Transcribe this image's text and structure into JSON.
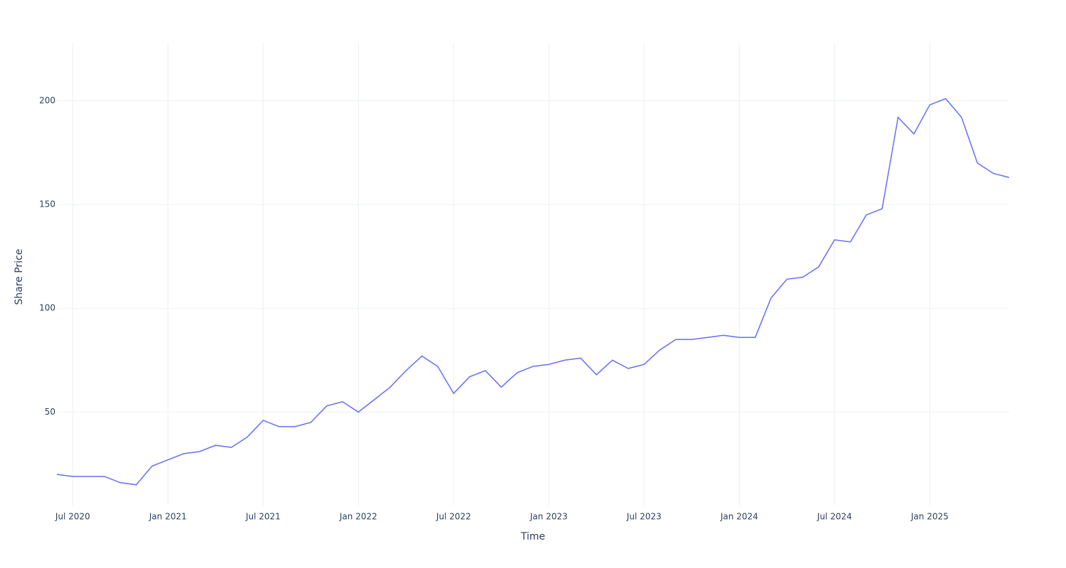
{
  "chart_data": {
    "type": "line",
    "x_label": "Time",
    "y_label": "Share Price",
    "x": [
      "2020-06",
      "2020-07",
      "2020-08",
      "2020-09",
      "2020-10",
      "2020-11",
      "2020-12",
      "2021-01",
      "2021-02",
      "2021-03",
      "2021-04",
      "2021-05",
      "2021-06",
      "2021-07",
      "2021-08",
      "2021-09",
      "2021-10",
      "2021-11",
      "2021-12",
      "2022-01",
      "2022-02",
      "2022-03",
      "2022-04",
      "2022-05",
      "2022-06",
      "2022-07",
      "2022-08",
      "2022-09",
      "2022-10",
      "2022-11",
      "2022-12",
      "2023-01",
      "2023-02",
      "2023-03",
      "2023-04",
      "2023-05",
      "2023-06",
      "2023-07",
      "2023-08",
      "2023-09",
      "2023-10",
      "2023-11",
      "2023-12",
      "2024-01",
      "2024-02",
      "2024-03",
      "2024-04",
      "2024-05",
      "2024-06",
      "2024-07",
      "2024-08",
      "2024-09",
      "2024-10",
      "2024-11",
      "2024-12",
      "2025-01",
      "2025-02",
      "2025-03",
      "2025-04",
      "2025-05",
      "2025-06"
    ],
    "series": [
      {
        "color": "#636efa",
        "values": [
          20,
          19,
          19,
          19,
          16,
          15,
          24,
          27,
          30,
          31,
          34,
          33,
          38,
          46,
          43,
          43,
          45,
          53,
          55,
          50,
          56,
          62,
          70,
          77,
          72,
          59,
          67,
          70,
          62,
          69,
          72,
          73,
          75,
          76,
          68,
          75,
          71,
          73,
          80,
          85,
          85,
          86,
          87,
          86,
          86,
          105,
          114,
          115,
          120,
          133,
          132,
          145,
          148,
          192,
          184,
          198,
          201,
          192,
          170,
          165,
          163
        ]
      }
    ],
    "xlim": [
      "2020-06",
      "2025-06"
    ],
    "xticks": [
      {
        "value": "2020-07",
        "label": "Jul 2020"
      },
      {
        "value": "2021-01",
        "label": "Jan 2021"
      },
      {
        "value": "2021-07",
        "label": "Jul 2021"
      },
      {
        "value": "2022-01",
        "label": "Jan 2022"
      },
      {
        "value": "2022-07",
        "label": "Jul 2022"
      },
      {
        "value": "2023-01",
        "label": "Jan 2023"
      },
      {
        "value": "2023-07",
        "label": "Jul 2023"
      },
      {
        "value": "2024-01",
        "label": "Jan 2024"
      },
      {
        "value": "2024-07",
        "label": "Jul 2024"
      },
      {
        "value": "2025-01",
        "label": "Jan 2025"
      }
    ],
    "ylim": [
      5,
      228
    ],
    "yticks": [
      50,
      100,
      150,
      200
    ],
    "grid": true
  }
}
